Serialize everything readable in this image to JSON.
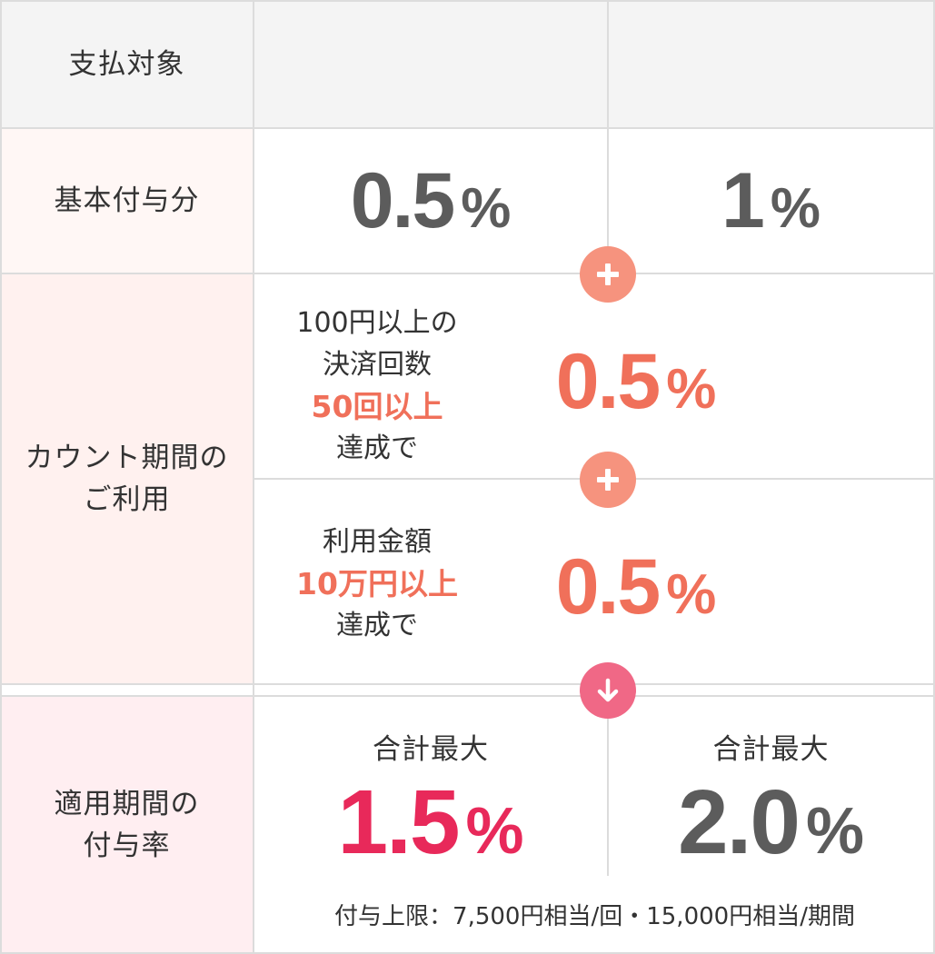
{
  "header": {
    "label": "支払対象",
    "col1": "",
    "col2": ""
  },
  "base": {
    "label": "基本付与分",
    "col1_value": "0.5",
    "col2_value": "1",
    "unit": "%"
  },
  "count": {
    "label_line1": "カウント期間の",
    "label_line2": "ご利用",
    "cond1": {
      "line1": "100円以上の",
      "line2": "決済回数",
      "highlight": "50回以上",
      "line4": "達成で",
      "value": "0.5",
      "unit": "%"
    },
    "cond2": {
      "line1": "利用金額",
      "highlight": "10万円以上",
      "line3": "達成で",
      "value": "0.5",
      "unit": "%"
    }
  },
  "rate": {
    "label_line1": "適用期間の",
    "label_line2": "付与率",
    "col1_caption": "合計最大",
    "col1_value": "1.5",
    "col2_caption": "合計最大",
    "col2_value": "2.0",
    "unit": "%",
    "note": "付与上限：7,500円相当/回・15,000円相当/期間"
  },
  "icons": {
    "plus1": "plus-icon",
    "plus2": "plus-icon",
    "arrow": "arrow-down-icon"
  },
  "colors": {
    "accent_orange": "#f0705a",
    "accent_red": "#e8295a",
    "plus_circle": "#f6937e",
    "arrow_circle": "#f06886"
  }
}
